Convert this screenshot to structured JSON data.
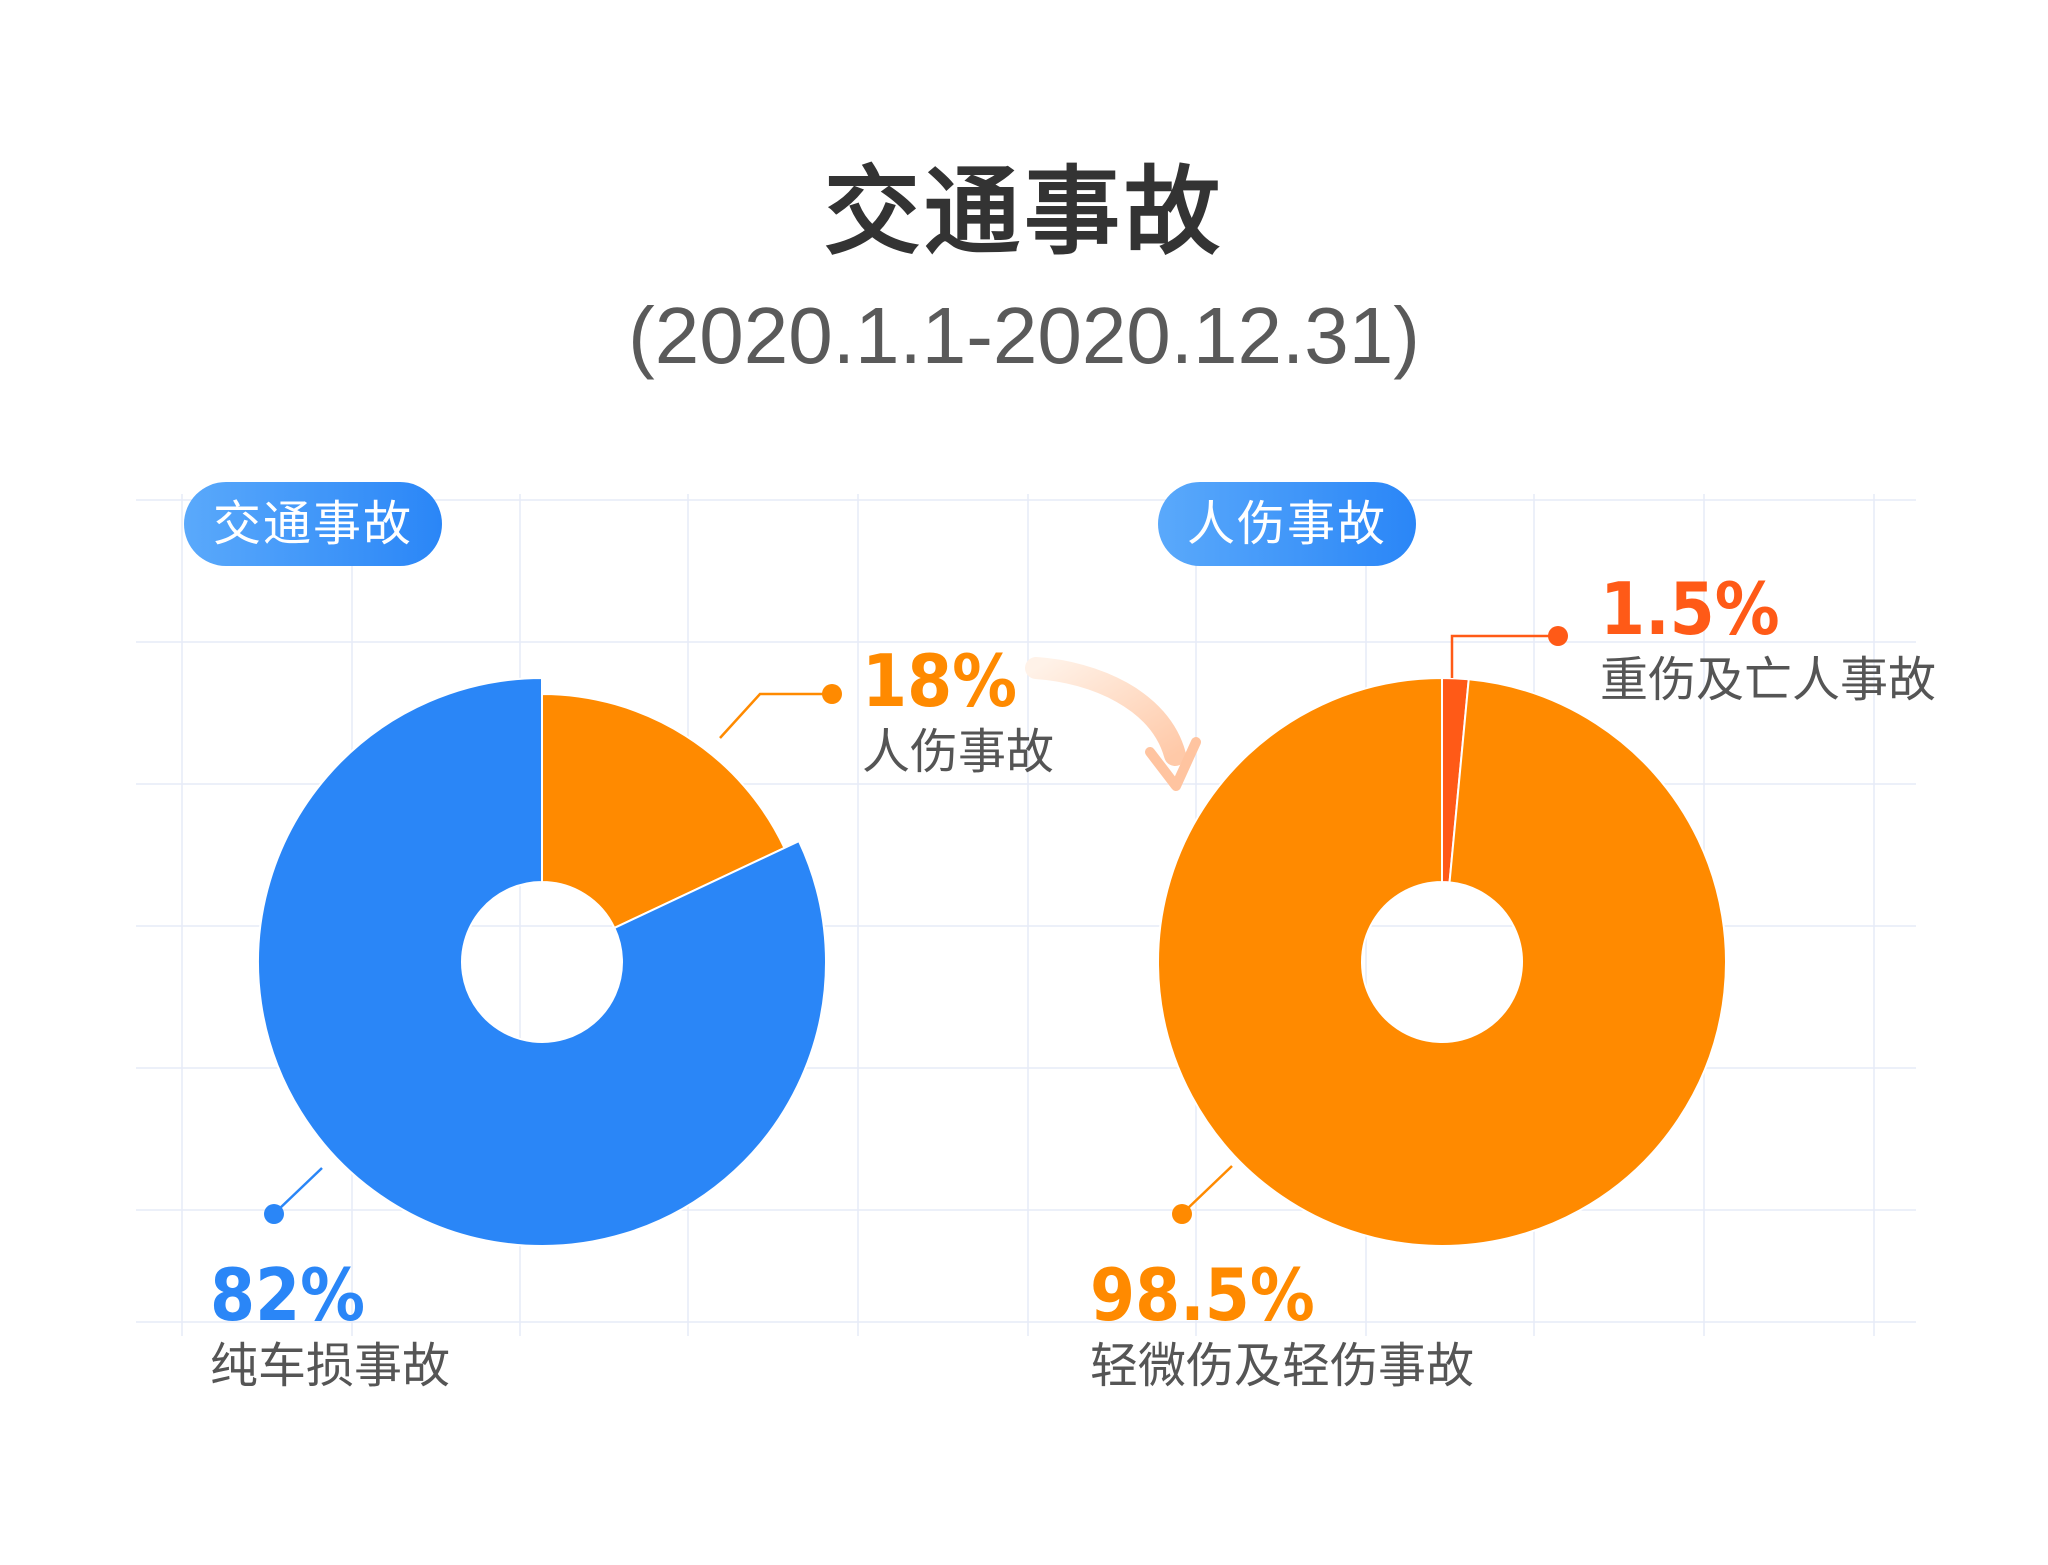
{
  "header": {
    "title": "交通事故",
    "subtitle": "(2020.1.1-2020.12.31)"
  },
  "colors": {
    "blue": "#2a86f7",
    "orange": "#ff8a00",
    "red_orange": "#ff5a17",
    "grid": "#e6ebf7"
  },
  "chart_data": [
    {
      "type": "pie",
      "title": "交通事故",
      "donut": true,
      "slices": [
        {
          "label": "人伤事故",
          "value": 18,
          "display": "18%",
          "color": "#ff8a00"
        },
        {
          "label": "纯车损事故",
          "value": 82,
          "display": "82%",
          "color": "#2a86f7"
        }
      ]
    },
    {
      "type": "pie",
      "title": "人伤事故",
      "donut": true,
      "slices": [
        {
          "label": "重伤及亡人事故",
          "value": 1.5,
          "display": "1.5%",
          "color": "#ff5a17"
        },
        {
          "label": "轻微伤及轻伤事故",
          "value": 98.5,
          "display": "98.5%",
          "color": "#ff8a00"
        }
      ]
    }
  ]
}
